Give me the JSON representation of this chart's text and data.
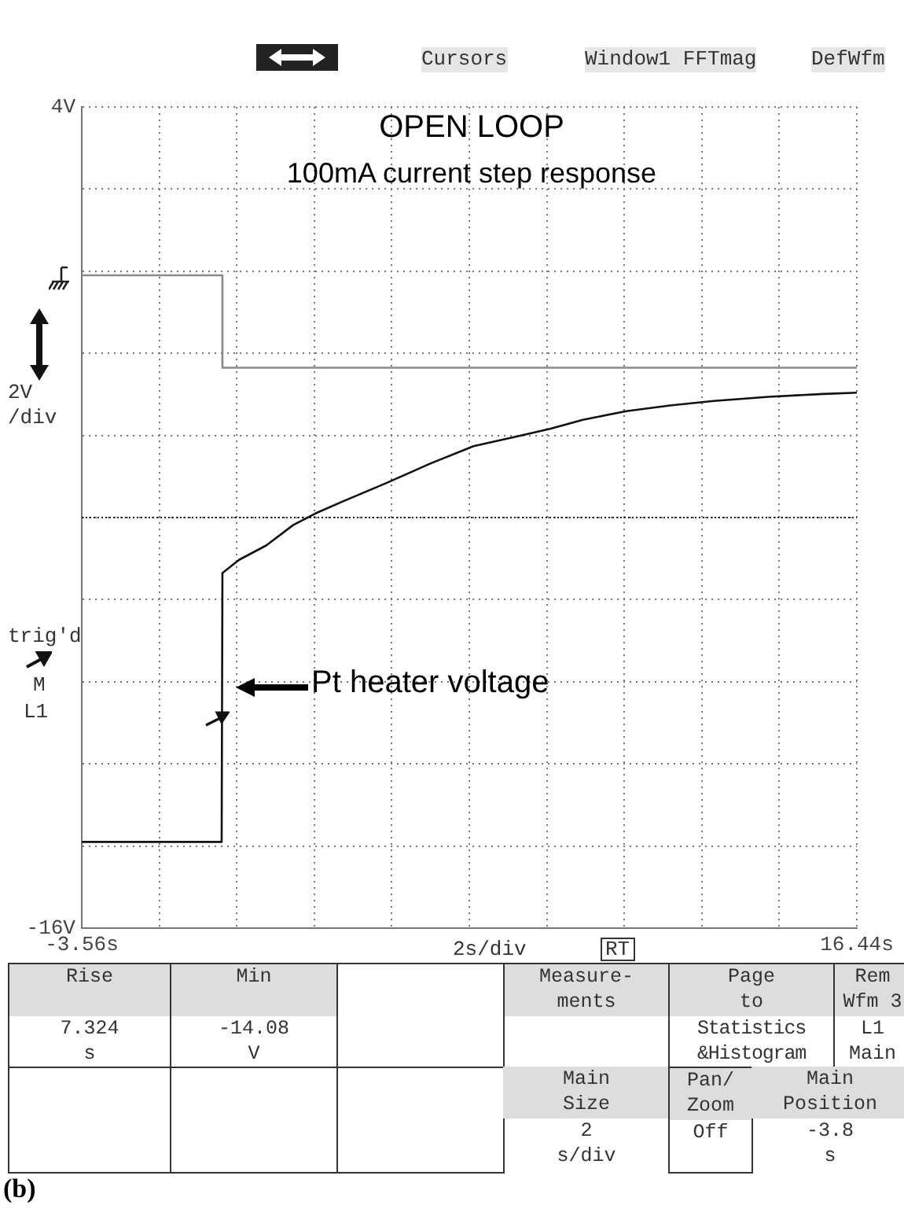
{
  "chart_data": {
    "type": "line",
    "title": "OPEN LOOP",
    "subtitle": "100mA current step response",
    "xlim": [
      -3.56,
      16.44
    ],
    "xticks": [
      {
        "value": -3.56,
        "label": "-3.56s"
      },
      {
        "value": -1.56,
        "label": null
      },
      {
        "value": 0.44,
        "label": null
      },
      {
        "value": 2.44,
        "label": null
      },
      {
        "value": 4.44,
        "label": null
      },
      {
        "value": 6.44,
        "label": null
      },
      {
        "value": 8.44,
        "label": null
      },
      {
        "value": 10.44,
        "label": null
      },
      {
        "value": 12.44,
        "label": null
      },
      {
        "value": 14.44,
        "label": null
      },
      {
        "value": 16.44,
        "label": "16.44s"
      }
    ],
    "ylim": [
      -16,
      4
    ],
    "yticks": [
      {
        "value": 4,
        "label": "4V"
      },
      {
        "value": 2,
        "label": null
      },
      {
        "value": 0,
        "label": null
      },
      {
        "value": -2,
        "label": null
      },
      {
        "value": -4,
        "label": null
      },
      {
        "value": -6,
        "label": null
      },
      {
        "value": -8,
        "label": null
      },
      {
        "value": -10,
        "label": null
      },
      {
        "value": -12,
        "label": null
      },
      {
        "value": -14,
        "label": null
      },
      {
        "value": -16,
        "label": "-16V"
      }
    ],
    "grid": true,
    "marker": "none",
    "line_style": "solid",
    "series": [
      {
        "color": "#111111",
        "x": [
          -3.56,
          -2,
          -1,
          0.05,
          0.07,
          0.5,
          1.2,
          1.9,
          2.47,
          3.17,
          4.3,
          5.42,
          6.55,
          7.68,
          8.52,
          9.37,
          10.49,
          11.62,
          12.75,
          14.16,
          15.57,
          16.44
        ],
        "values": [
          -13.9,
          -13.9,
          -13.9,
          -13.9,
          -7.35,
          -7.03,
          -6.68,
          -6.18,
          -5.9,
          -5.61,
          -5.16,
          -4.69,
          -4.26,
          -4.02,
          -3.84,
          -3.62,
          -3.41,
          -3.27,
          -3.16,
          -3.06,
          -2.99,
          -2.96
        ]
      },
      {
        "color": "#8a8a8a",
        "x": [
          -3.56,
          0.07,
          0.07,
          16.44
        ],
        "values": [
          -0.1,
          -0.1,
          -2.35,
          -2.35
        ]
      }
    ],
    "ref_lines": [
      {
        "axis": "y",
        "value": -6,
        "color": "#222222"
      }
    ],
    "annotations": [
      "Cursors",
      "Window1 FFTmag",
      "DefWfm",
      "trig'd",
      "M",
      "L1",
      "RT",
      "Rise",
      "7.324\ns",
      "Min",
      "-14.08\nV",
      "Measure-\nments",
      "Page\nto",
      "Statistics\n&Histogram",
      "Rem\nWfm 3",
      "L1\nMain",
      "Main\nSize",
      "2\ns/div",
      "Pan/\nZoom",
      "Off",
      "Main\nPosition",
      "-3.8\ns",
      "(b)",
      "Pt heater voltage"
    ],
    "xlabel": "2s/div",
    "ylabel": "2V\n/div"
  }
}
